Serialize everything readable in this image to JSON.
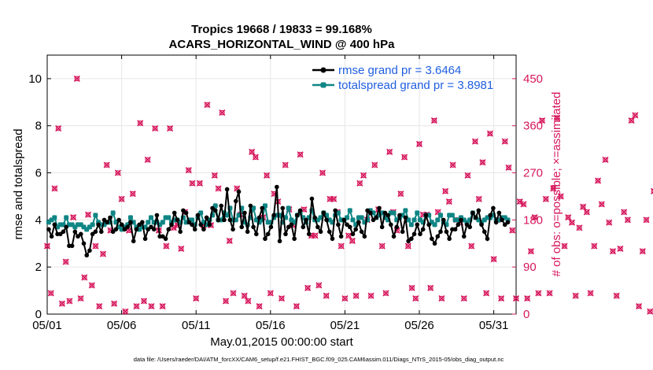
{
  "chart_data": {
    "type": "line",
    "title": "Tropics 19668 / 19833 = 99.168%",
    "subtitle": "ACARS_HORIZONTAL_WIND @ 400 hPa",
    "xlabel": "May.01,2015 00:00:00 start",
    "ylabel": "rmse and totalspread",
    "y2label": "# of obs: o=possible; ×=assimilated",
    "footnote": "data file: /Users/raeder/DAI/ATM_forcXX/CAM6_setup/f.e21.FHIST_BGC.f09_025.CAM6assim.011/Diags_NTrS_2015-05/obs_diag_output.nc",
    "xlim": [
      0,
      31.5
    ],
    "ylim": [
      0,
      11
    ],
    "y2lim": [
      0,
      495
    ],
    "x_ticks": [
      0,
      5,
      10,
      15,
      20,
      25,
      30
    ],
    "x_tick_labels": [
      "05/01",
      "05/06",
      "05/11",
      "05/16",
      "05/21",
      "05/26",
      "05/31"
    ],
    "y_ticks": [
      0,
      2,
      4,
      6,
      8,
      10
    ],
    "y_tick_labels": [
      "0",
      "2",
      "4",
      "6",
      "8",
      "10"
    ],
    "y2_ticks": [
      0,
      90,
      180,
      270,
      360,
      450
    ],
    "y2_tick_labels": [
      "0",
      "90",
      "180",
      "270",
      "360",
      "450"
    ],
    "grid": true,
    "legend_position": "top-right",
    "colors": {
      "rmse": "#000000",
      "spread": "#0f8585",
      "obs": "#d6175c",
      "legend_text": "#1f5ee0"
    },
    "series": [
      {
        "name": "rmse grand pr = 3.6464",
        "axis": "left",
        "values": [
          3.6,
          3.3,
          3.8,
          3.4,
          3.4,
          3.5,
          3.7,
          2.9,
          2.9,
          3.5,
          3.3,
          3.4,
          3.0,
          2.5,
          2.7,
          3.4,
          3.5,
          3.8,
          3.5,
          4.0,
          3.9,
          4.1,
          3.5,
          3.6,
          4.0,
          3.8,
          3.6,
          3.7,
          3.9,
          3.1,
          3.6,
          3.8,
          3.9,
          3.2,
          3.6,
          3.7,
          3.6,
          4.2,
          3.3,
          3.3,
          3.2,
          3.6,
          3.8,
          4.3,
          4.0,
          3.5,
          4.4,
          4.3,
          3.9,
          3.8,
          3.6,
          4.2,
          3.8,
          3.6,
          4.1,
          3.8,
          4.5,
          4.4,
          4.0,
          4.6,
          4.0,
          5.3,
          4.0,
          3.6,
          4.8,
          5.2,
          3.7,
          4.3,
          3.5,
          4.6,
          3.7,
          3.4,
          4.1,
          4.5,
          3.2,
          3.4,
          3.7,
          4.2,
          5.4,
          3.1,
          4.5,
          3.4,
          3.7,
          3.8,
          3.2,
          4.2,
          4.4,
          3.7,
          4.0,
          3.4,
          4.9,
          4.1,
          3.7,
          3.5,
          4.3,
          4.0,
          3.5,
          3.2,
          4.4,
          3.8,
          3.3,
          4.0,
          3.8,
          3.7,
          3.4,
          3.6,
          3.9,
          3.5,
          3.3,
          4.4,
          4.3,
          4.0,
          4.1,
          4.5,
          3.7,
          4.3,
          4.2,
          3.8,
          3.3,
          3.7,
          4.2,
          3.5,
          4.1,
          3.1,
          3.2,
          3.4,
          3.8,
          3.4,
          3.6,
          4.2,
          3.8,
          3.2,
          3.0,
          3.3,
          3.5,
          4.0,
          3.5,
          3.2,
          3.6,
          3.6,
          3.8,
          4.0,
          3.3,
          3.8,
          3.7,
          4.3,
          4.1,
          4.4,
          3.8,
          3.5,
          3.2,
          4.2,
          4.5,
          3.9,
          4.3,
          4.0,
          3.8,
          3.9
        ]
      },
      {
        "name": "totalspread grand pr = 3.8981",
        "axis": "left",
        "values": [
          3.9,
          4.0,
          4.1,
          3.7,
          3.8,
          3.8,
          4.1,
          3.8,
          3.8,
          3.7,
          3.8,
          3.8,
          3.7,
          3.6,
          3.7,
          3.8,
          4.2,
          3.9,
          3.8,
          3.8,
          3.9,
          3.9,
          4.3,
          3.9,
          3.7,
          3.6,
          3.7,
          3.8,
          4.1,
          3.9,
          3.7,
          3.6,
          3.7,
          3.7,
          3.9,
          4.1,
          3.9,
          3.9,
          3.8,
          3.9,
          4.1,
          4.1,
          3.9,
          4.0,
          4.0,
          3.9,
          4.1,
          3.9,
          4.0,
          4.0,
          3.8,
          4.1,
          4.3,
          3.9,
          3.8,
          4.0,
          4.2,
          4.6,
          4.0,
          4.0,
          4.3,
          4.2,
          4.5,
          4.0,
          4.0,
          4.2,
          4.5,
          3.9,
          3.8,
          4.1,
          4.5,
          4.0,
          3.9,
          4.0,
          4.6,
          3.9,
          3.9,
          4.1,
          4.2,
          4.2,
          3.9,
          4.1,
          4.5,
          4.0,
          3.9,
          4.2,
          4.3,
          4.1,
          3.9,
          4.1,
          4.4,
          4.0,
          4.0,
          4.1,
          4.3,
          4.2,
          4.0,
          3.9,
          4.2,
          4.3,
          4.0,
          4.0,
          4.1,
          4.4,
          4.0,
          3.8,
          4.1,
          4.1,
          3.9,
          4.0,
          4.4,
          4.3,
          4.1,
          4.2,
          4.3,
          4.1,
          4.0,
          4.3,
          4.3,
          4.0,
          4.1,
          4.2,
          4.4,
          4.0,
          3.8,
          4.0,
          4.3,
          4.0,
          3.9,
          4.2,
          4.2,
          3.9,
          3.8,
          4.0,
          4.2,
          3.9,
          3.8,
          4.2,
          4.2,
          4.0,
          4.0,
          4.1,
          4.0,
          3.9,
          4.0,
          4.3,
          4.1,
          4.0,
          3.9,
          4.0,
          4.1,
          4.1,
          4.2,
          4.0,
          4.0,
          4.1,
          4.1,
          4.0
        ]
      },
      {
        "name": "# of obs",
        "axis": "right",
        "x_step": 0.25,
        "x_start": 0.0,
        "values": [
          130,
          40,
          240,
          355,
          20,
          100,
          25,
          185,
          450,
          30,
          70,
          190,
          55,
          130,
          15,
          115,
          285,
          160,
          20,
          270,
          220,
          5,
          160,
          230,
          15,
          365,
          25,
          295,
          15,
          355,
          160,
          15,
          130,
          355,
          165,
          170,
          125,
          195,
          275,
          250,
          30,
          250,
          170,
          400,
          170,
          265,
          240,
          385,
          25,
          140,
          40,
          240,
          190,
          35,
          25,
          310,
          300,
          15,
          185,
          265,
          40,
          230,
          215,
          30,
          285,
          200,
          170,
          15,
          305,
          200,
          50,
          150,
          150,
          55,
          270,
          35,
          220,
          220,
          195,
          130,
          30,
          150,
          140,
          35,
          250,
          265,
          180,
          35,
          285,
          200,
          130,
          40,
          310,
          195,
          160,
          230,
          300,
          130,
          50,
          30,
          325,
          190,
          190,
          50,
          370,
          195,
          30,
          235,
          215,
          285,
          180,
          175,
          30,
          265,
          130,
          330,
          220,
          290,
          40,
          345,
          105,
          180,
          30,
          330,
          280,
          160,
          30,
          215,
          210,
          30,
          120,
          185,
          40,
          370,
          220,
          40,
          240,
          375,
          225,
          130,
          185,
          175,
          35,
          165,
          205,
          195,
          40,
          130,
          255,
          210,
          295,
          175,
          120,
          35,
          125,
          195,
          180,
          370,
          380,
          15,
          120,
          180,
          5,
          235,
          165
        ]
      }
    ]
  }
}
